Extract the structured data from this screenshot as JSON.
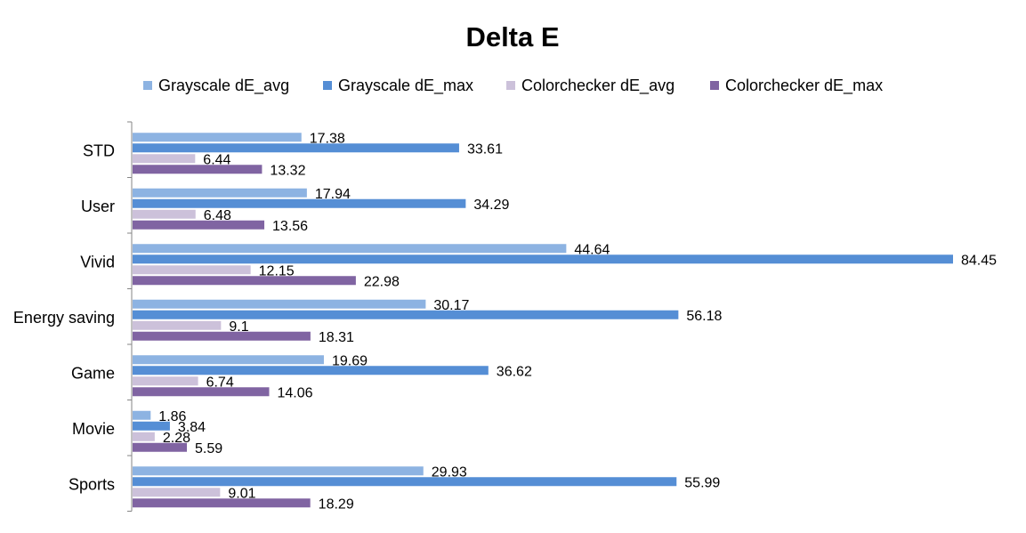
{
  "chart_data": {
    "type": "bar",
    "orientation": "horizontal",
    "title": "Delta E",
    "xlabel": "",
    "ylabel": "",
    "xlim": [
      0,
      85
    ],
    "grid": false,
    "legend_position": "top",
    "categories": [
      "STD",
      "User",
      "Vivid",
      "Energy saving",
      "Game",
      "Movie",
      "Sports"
    ],
    "series": [
      {
        "name": "Grayscale dE_avg",
        "color": "#8DB3E2",
        "values": [
          17.38,
          17.94,
          44.64,
          30.17,
          19.69,
          1.86,
          29.93
        ]
      },
      {
        "name": "Grayscale dE_max",
        "color": "#558ED5",
        "values": [
          33.61,
          34.29,
          84.45,
          56.18,
          36.62,
          3.84,
          55.99
        ]
      },
      {
        "name": "Colorchecker dE_avg",
        "color": "#CCC1DA",
        "values": [
          6.44,
          6.48,
          12.15,
          9.1,
          6.74,
          2.28,
          9.01
        ]
      },
      {
        "name": "Colorchecker dE_max",
        "color": "#8064A2",
        "values": [
          13.32,
          13.56,
          22.98,
          18.31,
          14.06,
          5.59,
          18.29
        ]
      }
    ]
  }
}
